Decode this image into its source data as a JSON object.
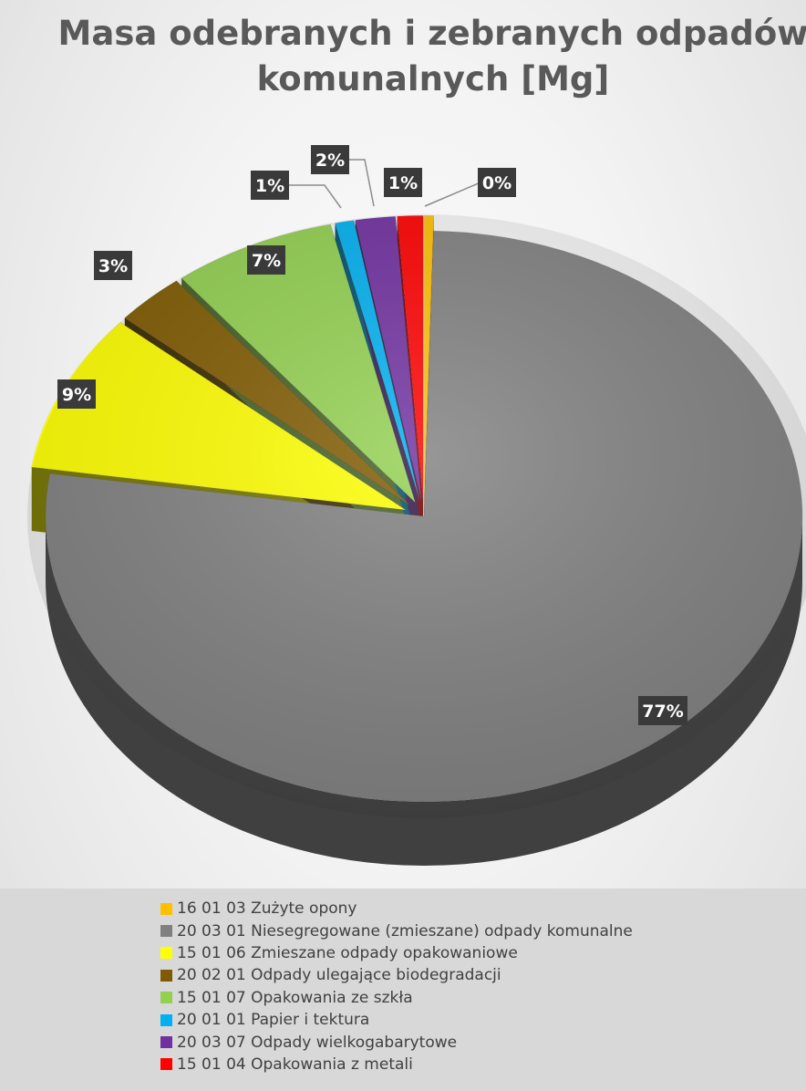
{
  "chart_data": {
    "type": "pie",
    "title_lines": [
      "Masa odebranych i zebranych odpadów",
      "komunalnych [Mg]"
    ],
    "slices": [
      {
        "name": "16 01 03 Zużyte opony",
        "value": 0.4,
        "label": "0%",
        "color": "#ffc000"
      },
      {
        "name": "20 03 01 Niesegregowane (zmieszane) odpady komunalne",
        "value": 77.0,
        "label": "77%",
        "color": "#808080"
      },
      {
        "name": "15 01 06 Zmieszane odpady opakowaniowe",
        "value": 9.0,
        "label": "9%",
        "color": "#ffff00"
      },
      {
        "name": "20 02 01 Odpady ulegające biodegradacji",
        "value": 3.0,
        "label": "3%",
        "color": "#7f5a00"
      },
      {
        "name": "15 01 07 Opakowania ze szkła",
        "value": 7.0,
        "label": "7%",
        "color": "#92d050"
      },
      {
        "name": "20 01 01 Papier i tektura",
        "value": 0.8,
        "label": "1%",
        "color": "#00b0f0"
      },
      {
        "name": "20 03 07 Odpady wielkogabarytowe",
        "value": 1.7,
        "label": "2%",
        "color": "#7030a0"
      },
      {
        "name": "15 01 04 Opakowania z metali",
        "value": 1.1,
        "label": "1%",
        "color": "#ff0000"
      }
    ],
    "legend_position": "bottom"
  }
}
